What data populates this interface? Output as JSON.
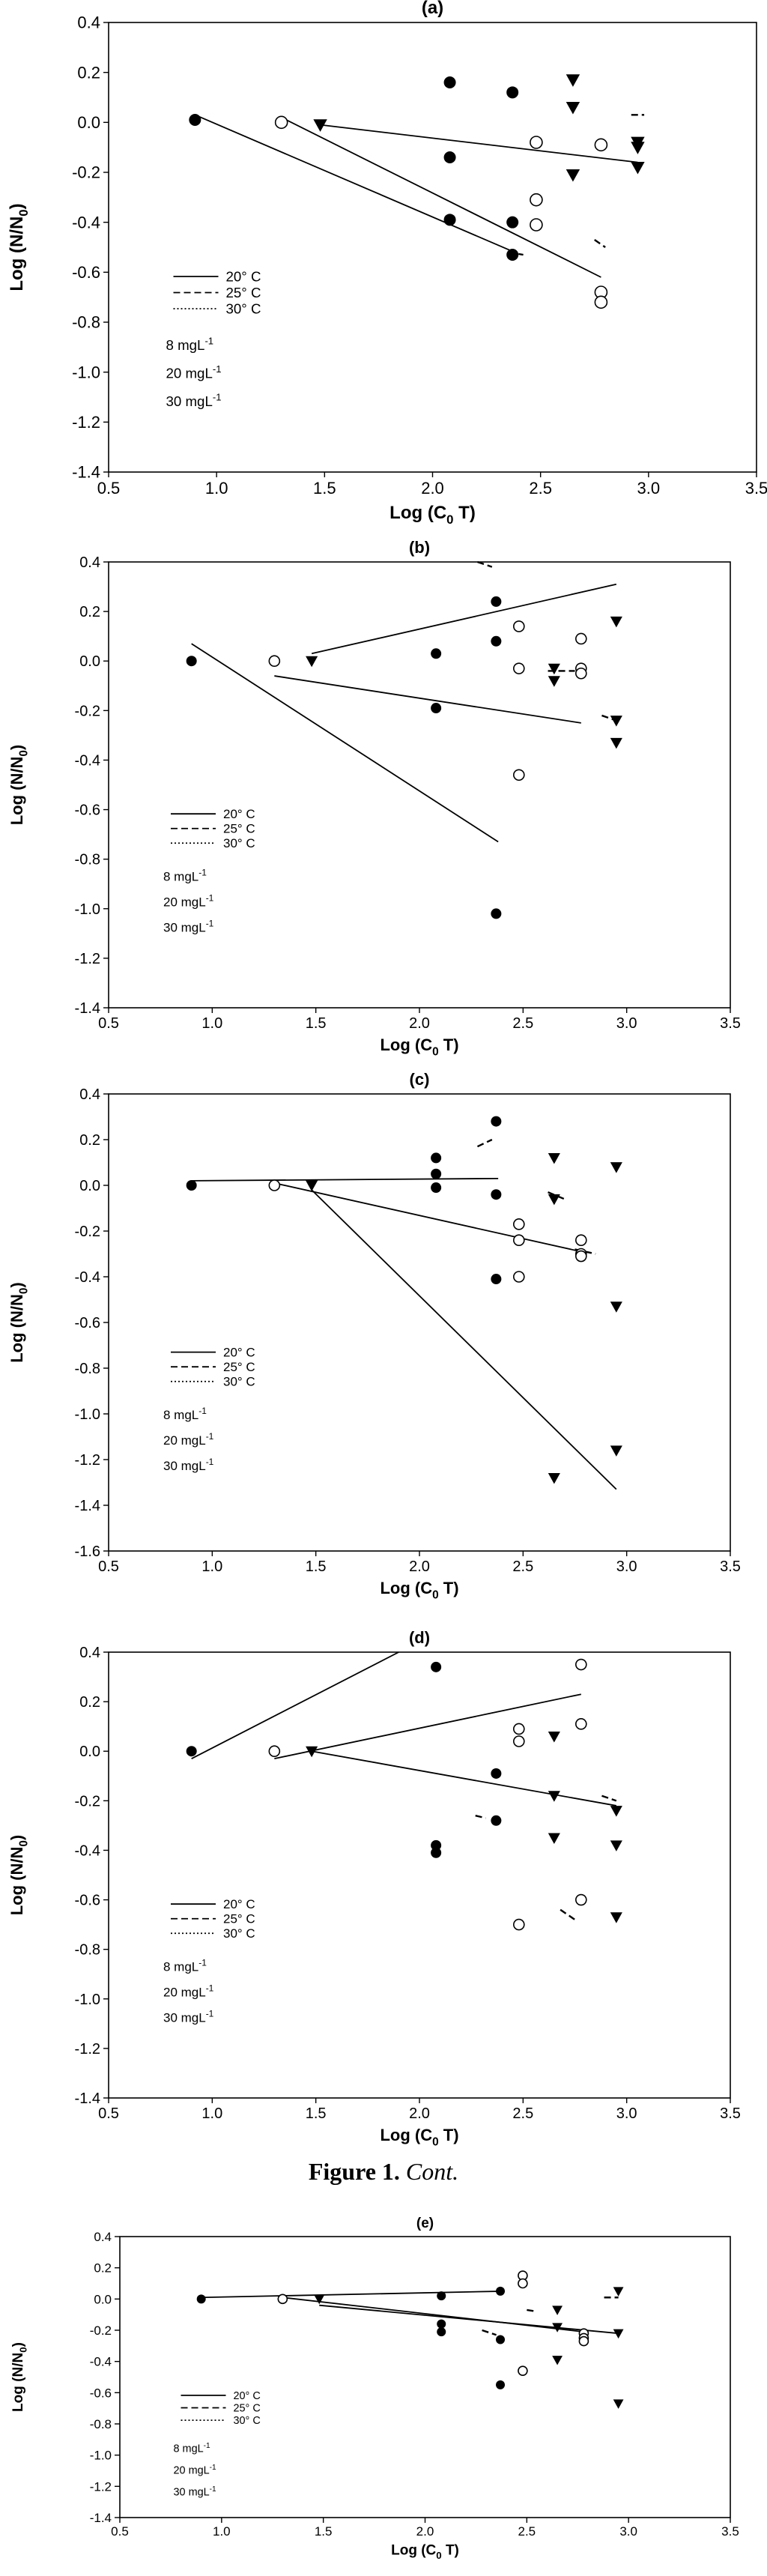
{
  "figure": {
    "caption_label": "Figure 1.",
    "caption_text": "Cont."
  },
  "chart_data": [
    {
      "type": "scatter",
      "panel_label": "(a)",
      "xlabel": "Log (C",
      "xlabel_sub": "0",
      "xlabel_tail": " T)",
      "ylabel": "Log (N/N",
      "ylabel_sub": "0",
      "ylabel_tail": ")",
      "xlim": [
        0.5,
        3.5
      ],
      "ylim": [
        -1.4,
        0.4
      ],
      "xticks": [
        "0.5",
        "1.0",
        "1.5",
        "2.0",
        "2.5",
        "3.0",
        "3.5"
      ],
      "yticks": [
        "0.4",
        "0.2",
        "0.0",
        "-0.2",
        "-0.4",
        "-0.6",
        "-0.8",
        "-1.0",
        "-1.2",
        "-1.4"
      ],
      "legend_lines": [
        {
          "style": "solid",
          "label": "20° C"
        },
        {
          "style": "dashed",
          "label": "25° C"
        },
        {
          "style": "dotted",
          "label": "30° C"
        }
      ],
      "legend_dose": [
        {
          "base": "8 mgL",
          "exp": "-1"
        },
        {
          "base": "20 mgL",
          "exp": "-1"
        },
        {
          "base": "30 mgL",
          "exp": "-1"
        }
      ],
      "series": [
        {
          "name": "8 mgL-1",
          "marker": "filled-circle",
          "x": [
            0.9,
            2.08,
            2.08,
            2.08,
            2.37,
            2.37,
            2.37
          ],
          "y": [
            0.01,
            0.16,
            -0.14,
            -0.39,
            0.12,
            -0.4,
            -0.53
          ]
        },
        {
          "name": "20 mgL-1",
          "marker": "open-circle",
          "x": [
            1.3,
            2.48,
            2.48,
            2.48,
            2.78,
            2.78,
            2.78
          ],
          "y": [
            0.0,
            -0.08,
            -0.31,
            -0.41,
            -0.09,
            -0.68,
            -0.72
          ]
        },
        {
          "name": "30 mgL-1",
          "marker": "filled-triangle",
          "x": [
            1.48,
            2.65,
            2.65,
            2.65,
            2.95,
            2.95,
            2.95
          ],
          "y": [
            -0.01,
            0.17,
            0.06,
            -0.21,
            -0.08,
            -0.1,
            -0.18
          ]
        }
      ],
      "fit_lines": [
        {
          "style": "solid",
          "x": [
            0.9,
            2.38
          ],
          "y": [
            0.03,
            -0.52
          ]
        },
        {
          "style": "solid",
          "x": [
            1.3,
            2.78
          ],
          "y": [
            0.02,
            -0.62
          ]
        },
        {
          "style": "solid",
          "x": [
            1.48,
            2.95
          ],
          "y": [
            -0.01,
            -0.16
          ]
        },
        {
          "style": "dashed",
          "x": [
            2.35,
            2.42
          ],
          "y": [
            -0.52,
            -0.53
          ]
        },
        {
          "style": "dashed",
          "x": [
            2.75,
            2.8
          ],
          "y": [
            -0.47,
            -0.5
          ]
        },
        {
          "style": "dashed",
          "x": [
            2.92,
            2.98
          ],
          "y": [
            0.03,
            0.03
          ]
        }
      ]
    },
    {
      "type": "scatter",
      "panel_label": "(b)",
      "xlabel": "Log (C",
      "xlabel_sub": "0",
      "xlabel_tail": " T)",
      "ylabel": "Log (N/N",
      "ylabel_sub": "0",
      "ylabel_tail": ")",
      "xlim": [
        0.5,
        3.5
      ],
      "ylim": [
        -1.4,
        0.4
      ],
      "xticks": [
        "0.5",
        "1.0",
        "1.5",
        "2.0",
        "2.5",
        "3.0",
        "3.5"
      ],
      "yticks": [
        "0.4",
        "0.2",
        "0.0",
        "-0.2",
        "-0.4",
        "-0.6",
        "-0.8",
        "-1.0",
        "-1.2",
        "-1.4"
      ],
      "legend_lines": [
        {
          "style": "solid",
          "label": "20° C"
        },
        {
          "style": "dashed",
          "label": "25° C"
        },
        {
          "style": "dotted",
          "label": "30° C"
        }
      ],
      "legend_dose": [
        {
          "base": "8 mgL",
          "exp": "-1"
        },
        {
          "base": "20 mgL",
          "exp": "-1"
        },
        {
          "base": "30 mgL",
          "exp": "-1"
        }
      ],
      "series": [
        {
          "name": "8 mgL-1",
          "marker": "filled-circle",
          "x": [
            0.9,
            2.08,
            2.08,
            2.37,
            2.37,
            2.37
          ],
          "y": [
            0.0,
            0.03,
            -0.19,
            0.24,
            0.08,
            -1.02
          ]
        },
        {
          "name": "20 mgL-1",
          "marker": "open-circle",
          "x": [
            1.3,
            2.48,
            2.48,
            2.48,
            2.78,
            2.78,
            2.78
          ],
          "y": [
            0.0,
            0.14,
            -0.03,
            -0.46,
            0.09,
            -0.03,
            -0.05
          ]
        },
        {
          "name": "30 mgL-1",
          "marker": "filled-triangle",
          "x": [
            1.48,
            2.65,
            2.65,
            2.95,
            2.95,
            2.95
          ],
          "y": [
            0.0,
            -0.03,
            -0.08,
            0.16,
            -0.24,
            -0.33
          ]
        }
      ],
      "fit_lines": [
        {
          "style": "solid",
          "x": [
            0.9,
            2.38
          ],
          "y": [
            0.07,
            -0.73
          ]
        },
        {
          "style": "solid",
          "x": [
            1.3,
            2.78
          ],
          "y": [
            -0.06,
            -0.25
          ]
        },
        {
          "style": "solid",
          "x": [
            1.48,
            2.95
          ],
          "y": [
            0.03,
            0.31
          ]
        },
        {
          "style": "dashed",
          "x": [
            2.28,
            2.35
          ],
          "y": [
            0.4,
            0.38
          ]
        },
        {
          "style": "dashed",
          "x": [
            2.62,
            2.75
          ],
          "y": [
            -0.04,
            -0.04
          ]
        },
        {
          "style": "dashed",
          "x": [
            2.88,
            2.95
          ],
          "y": [
            -0.22,
            -0.24
          ]
        }
      ]
    },
    {
      "type": "scatter",
      "panel_label": "(c)",
      "xlabel": "Log (C",
      "xlabel_sub": "0",
      "xlabel_tail": " T)",
      "ylabel": "Log (N/N",
      "ylabel_sub": "0",
      "ylabel_tail": ")",
      "xlim": [
        0.5,
        3.5
      ],
      "ylim": [
        -1.6,
        0.4
      ],
      "xticks": [
        "0.5",
        "1.0",
        "1.5",
        "2.0",
        "2.5",
        "3.0",
        "3.5"
      ],
      "yticks": [
        "0.4",
        "0.2",
        "0.0",
        "-0.2",
        "-0.4",
        "-0.6",
        "-0.8",
        "-1.0",
        "-1.2",
        "-1.4",
        "-1.6"
      ],
      "legend_lines": [
        {
          "style": "solid",
          "label": "20° C"
        },
        {
          "style": "dashed",
          "label": "25° C"
        },
        {
          "style": "dotted",
          "label": "30° C"
        }
      ],
      "legend_dose": [
        {
          "base": "8 mgL",
          "exp": "-1"
        },
        {
          "base": "20 mgL",
          "exp": "-1"
        },
        {
          "base": "30 mgL",
          "exp": "-1"
        }
      ],
      "series": [
        {
          "name": "8 mgL-1",
          "marker": "filled-circle",
          "x": [
            0.9,
            2.08,
            2.08,
            2.08,
            2.37,
            2.37,
            2.37
          ],
          "y": [
            0.0,
            0.12,
            0.05,
            -0.01,
            0.28,
            -0.04,
            -0.41
          ]
        },
        {
          "name": "20 mgL-1",
          "marker": "open-circle",
          "x": [
            1.3,
            2.48,
            2.48,
            2.48,
            2.78,
            2.78,
            2.78
          ],
          "y": [
            0.0,
            -0.17,
            -0.24,
            -0.4,
            -0.24,
            -0.3,
            -0.31
          ]
        },
        {
          "name": "30 mgL-1",
          "marker": "filled-triangle",
          "x": [
            1.48,
            2.65,
            2.65,
            2.65,
            2.95,
            2.95,
            2.95
          ],
          "y": [
            0.0,
            0.12,
            -0.06,
            -1.28,
            0.08,
            -0.53,
            -1.16
          ]
        }
      ],
      "fit_lines": [
        {
          "style": "solid",
          "x": [
            0.9,
            2.38
          ],
          "y": [
            0.02,
            0.03
          ]
        },
        {
          "style": "solid",
          "x": [
            1.3,
            2.78
          ],
          "y": [
            0.01,
            -0.29
          ]
        },
        {
          "style": "solid",
          "x": [
            1.48,
            2.95
          ],
          "y": [
            -0.02,
            -1.33
          ]
        },
        {
          "style": "dashed",
          "x": [
            2.28,
            2.35
          ],
          "y": [
            0.17,
            0.2
          ]
        },
        {
          "style": "dashed",
          "x": [
            2.62,
            2.7
          ],
          "y": [
            -0.03,
            -0.06
          ]
        },
        {
          "style": "dashed",
          "x": [
            2.75,
            2.85
          ],
          "y": [
            -0.28,
            -0.3
          ]
        }
      ]
    },
    {
      "type": "scatter",
      "panel_label": "(d)",
      "xlabel": "Log (C",
      "xlabel_sub": "0",
      "xlabel_tail": " T)",
      "ylabel": "Log (N/N",
      "ylabel_sub": "0",
      "ylabel_tail": ")",
      "xlim": [
        0.5,
        3.5
      ],
      "ylim": [
        -1.4,
        0.4
      ],
      "xticks": [
        "0.5",
        "1.0",
        "1.5",
        "2.0",
        "2.5",
        "3.0",
        "3.5"
      ],
      "yticks": [
        "0.4",
        "0.2",
        "0.0",
        "-0.2",
        "-0.4",
        "-0.6",
        "-0.8",
        "-1.0",
        "-1.2",
        "-1.4"
      ],
      "legend_lines": [
        {
          "style": "solid",
          "label": "20° C"
        },
        {
          "style": "dashed",
          "label": "25° C"
        },
        {
          "style": "dotted",
          "label": "30° C"
        }
      ],
      "legend_dose": [
        {
          "base": "8 mgL",
          "exp": "-1"
        },
        {
          "base": "20 mgL",
          "exp": "-1"
        },
        {
          "base": "30 mgL",
          "exp": "-1"
        }
      ],
      "series": [
        {
          "name": "8 mgL-1",
          "marker": "filled-circle",
          "x": [
            0.9,
            2.08,
            2.08,
            2.08,
            2.37,
            2.37
          ],
          "y": [
            0.0,
            0.34,
            -0.38,
            -0.41,
            -0.09,
            -0.28
          ]
        },
        {
          "name": "20 mgL-1",
          "marker": "open-circle",
          "x": [
            1.3,
            2.48,
            2.48,
            2.48,
            2.78,
            2.78,
            2.78
          ],
          "y": [
            0.0,
            0.09,
            0.04,
            -0.7,
            0.35,
            0.11,
            -0.6
          ]
        },
        {
          "name": "30 mgL-1",
          "marker": "filled-triangle",
          "x": [
            1.48,
            2.65,
            2.65,
            2.65,
            2.95,
            2.95,
            2.95
          ],
          "y": [
            0.0,
            0.06,
            -0.18,
            -0.35,
            -0.24,
            -0.38,
            -0.67
          ]
        }
      ],
      "fit_lines": [
        {
          "style": "solid",
          "x": [
            0.9,
            1.9
          ],
          "y": [
            -0.03,
            0.4
          ]
        },
        {
          "style": "solid",
          "x": [
            1.3,
            2.78
          ],
          "y": [
            -0.03,
            0.23
          ]
        },
        {
          "style": "solid",
          "x": [
            1.48,
            2.95
          ],
          "y": [
            0.0,
            -0.22
          ]
        },
        {
          "style": "dashed",
          "x": [
            2.27,
            2.32
          ],
          "y": [
            -0.26,
            -0.27
          ]
        },
        {
          "style": "dashed",
          "x": [
            2.68,
            2.75
          ],
          "y": [
            -0.64,
            -0.68
          ]
        },
        {
          "style": "dashed",
          "x": [
            2.88,
            2.95
          ],
          "y": [
            -0.18,
            -0.2
          ]
        }
      ]
    },
    {
      "type": "scatter",
      "panel_label": "(e)",
      "xlabel": "Log (C",
      "xlabel_sub": "0",
      "xlabel_tail": " T)",
      "ylabel": "Log (N/N",
      "ylabel_sub": "0",
      "ylabel_tail": ")",
      "xlim": [
        0.5,
        3.5
      ],
      "ylim": [
        -1.4,
        0.4
      ],
      "xticks": [
        "0.5",
        "1.0",
        "1.5",
        "2.0",
        "2.5",
        "3.0",
        "3.5"
      ],
      "yticks": [
        "0.4",
        "0.2",
        "0.0",
        "-0.2",
        "-0.4",
        "-0.6",
        "-0.8",
        "-1.0",
        "-1.2",
        "-1.4"
      ],
      "legend_lines": [
        {
          "style": "solid",
          "label": "20° C"
        },
        {
          "style": "dashed",
          "label": "25° C"
        },
        {
          "style": "dotted",
          "label": "30° C"
        }
      ],
      "legend_dose": [
        {
          "base": "8 mgL",
          "exp": "-1"
        },
        {
          "base": "20 mgL",
          "exp": "-1"
        },
        {
          "base": "30 mgL",
          "exp": "-1"
        }
      ],
      "series": [
        {
          "name": "8 mgL-1",
          "marker": "filled-circle",
          "x": [
            0.9,
            2.08,
            2.08,
            2.08,
            2.37,
            2.37,
            2.37
          ],
          "y": [
            0.0,
            0.02,
            -0.16,
            -0.21,
            0.05,
            -0.26,
            -0.55
          ]
        },
        {
          "name": "20 mgL-1",
          "marker": "open-circle",
          "x": [
            1.3,
            2.48,
            2.48,
            2.48,
            2.78,
            2.78,
            2.78
          ],
          "y": [
            0.0,
            0.15,
            0.1,
            -0.46,
            -0.22,
            -0.25,
            -0.27
          ]
        },
        {
          "name": "30 mgL-1",
          "marker": "filled-triangle",
          "x": [
            1.48,
            2.65,
            2.65,
            2.65,
            2.95,
            2.95,
            2.95
          ],
          "y": [
            0.0,
            -0.07,
            -0.18,
            -0.39,
            0.05,
            -0.22,
            -0.67
          ]
        }
      ],
      "fit_lines": [
        {
          "style": "solid",
          "x": [
            0.9,
            2.38
          ],
          "y": [
            0.01,
            0.05
          ]
        },
        {
          "style": "solid",
          "x": [
            1.3,
            2.78
          ],
          "y": [
            0.01,
            -0.21
          ]
        },
        {
          "style": "solid",
          "x": [
            1.48,
            2.95
          ],
          "y": [
            -0.04,
            -0.22
          ]
        },
        {
          "style": "dashed",
          "x": [
            2.28,
            2.35
          ],
          "y": [
            -0.2,
            -0.23
          ]
        },
        {
          "style": "dashed",
          "x": [
            2.5,
            2.55
          ],
          "y": [
            -0.07,
            -0.08
          ]
        },
        {
          "style": "dashed",
          "x": [
            2.88,
            2.95
          ],
          "y": [
            0.01,
            0.01
          ]
        }
      ]
    }
  ]
}
